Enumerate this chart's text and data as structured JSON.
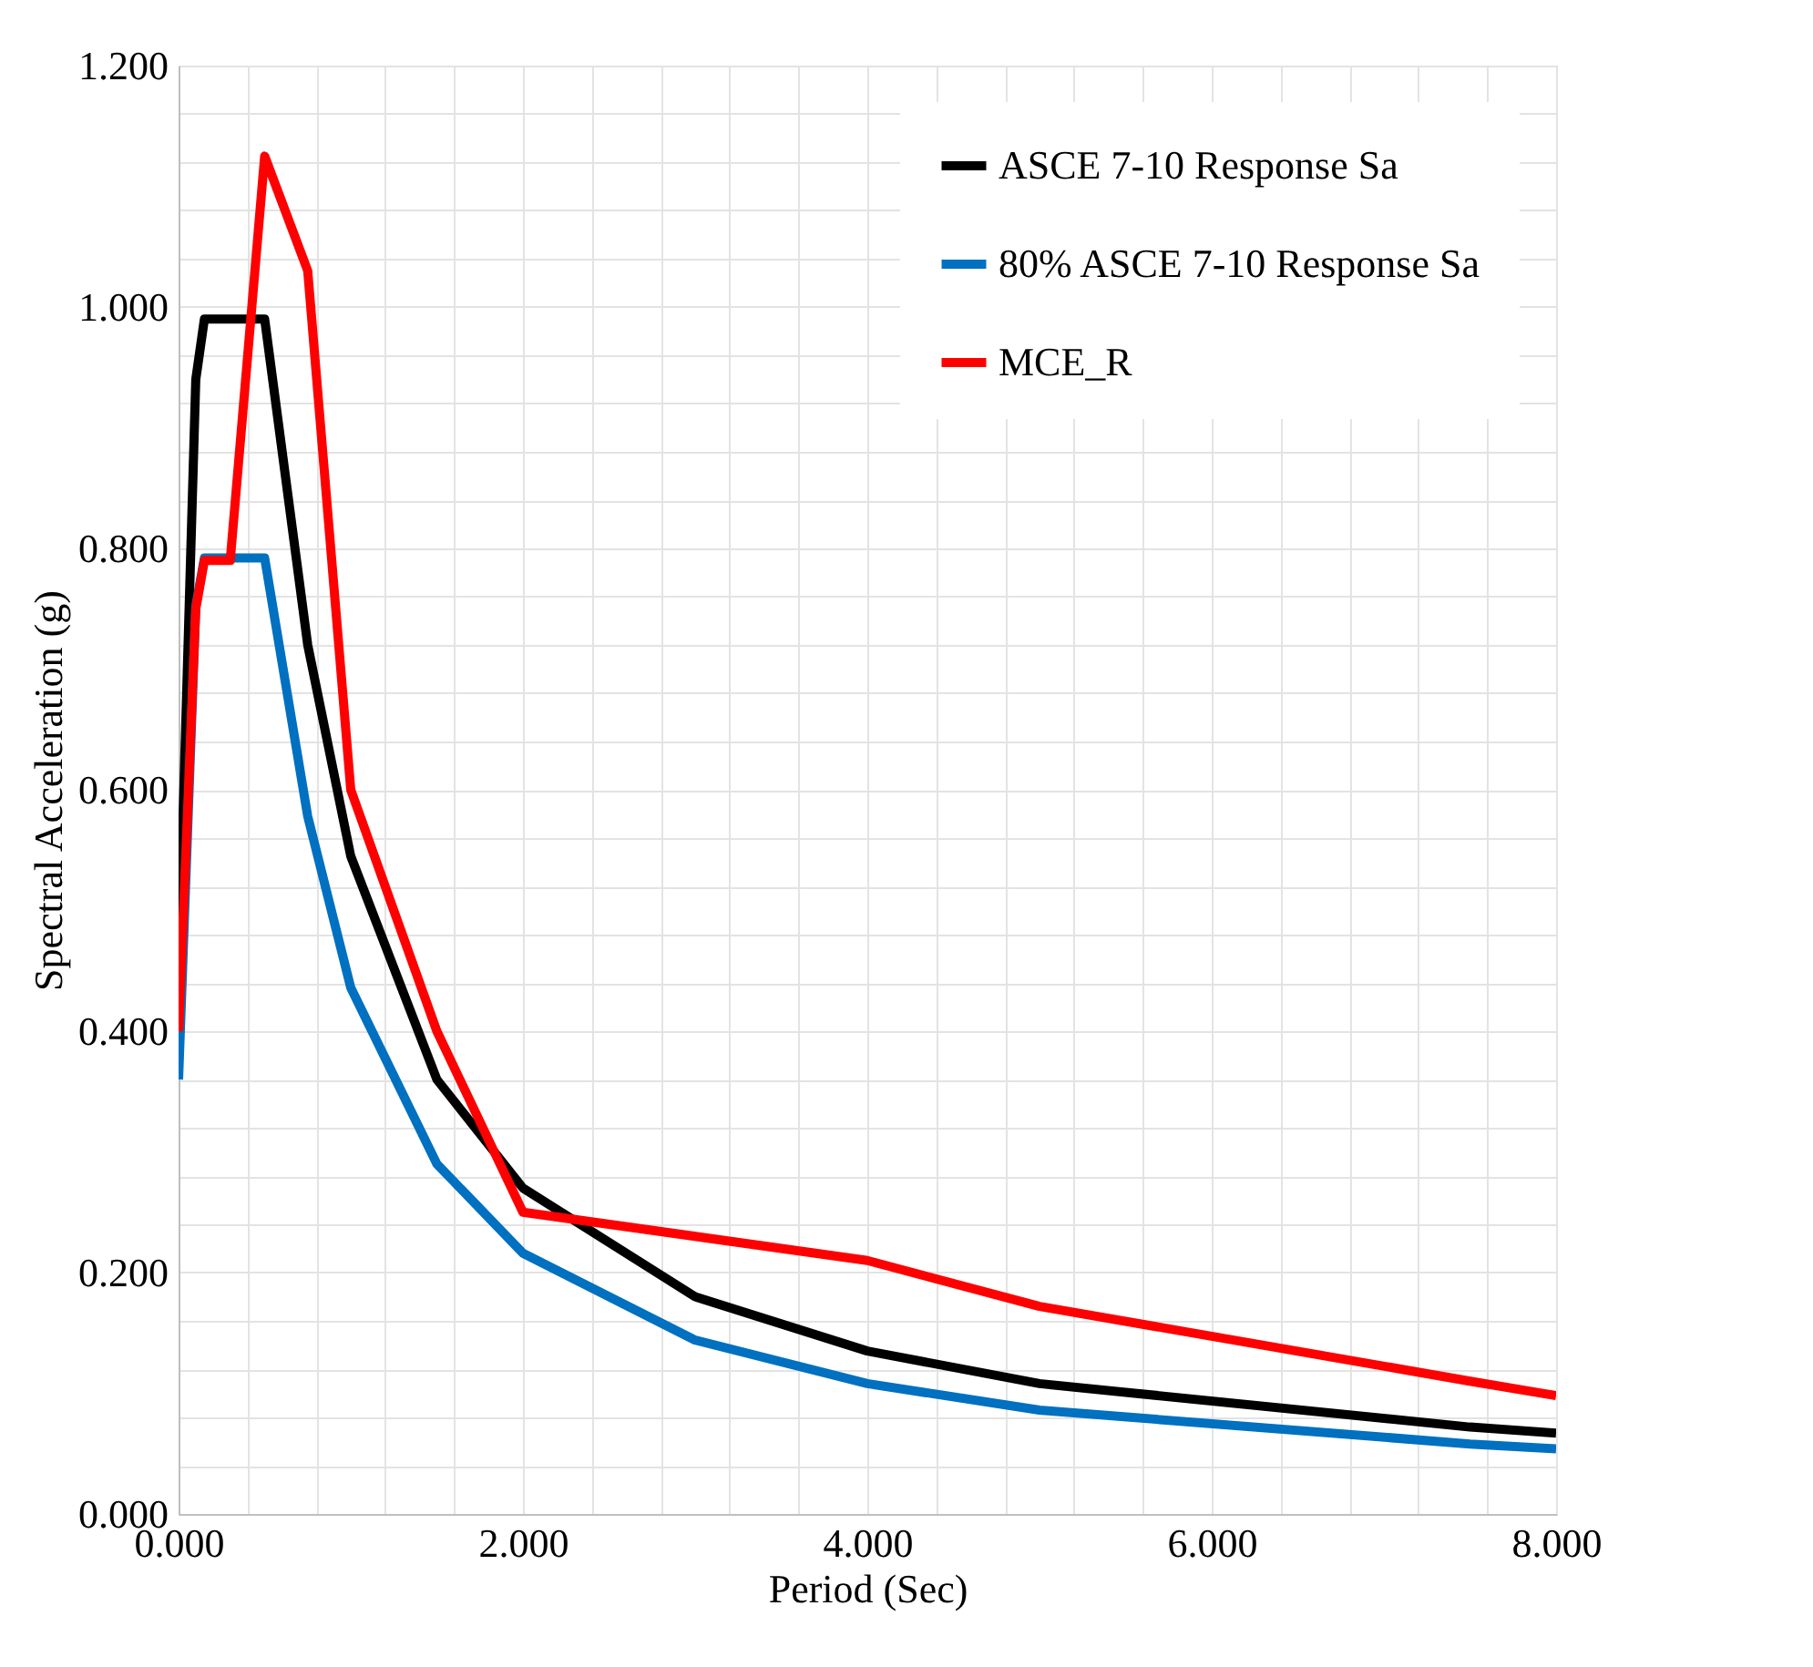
{
  "chart_data": {
    "type": "line",
    "xlabel": "Period (Sec)",
    "ylabel": "Spectral Acceleration (g)",
    "xlim": [
      0,
      8
    ],
    "ylim": [
      0,
      1.2
    ],
    "xticks": [
      {
        "value": 0,
        "label": "0.000"
      },
      {
        "value": 0.4,
        "label": null
      },
      {
        "value": 0.8,
        "label": null
      },
      {
        "value": 1.2,
        "label": null
      },
      {
        "value": 1.6,
        "label": null
      },
      {
        "value": 2,
        "label": "2.000"
      },
      {
        "value": 2.4,
        "label": null
      },
      {
        "value": 2.8,
        "label": null
      },
      {
        "value": 3.2,
        "label": null
      },
      {
        "value": 3.6,
        "label": null
      },
      {
        "value": 4,
        "label": "4.000"
      },
      {
        "value": 4.4,
        "label": null
      },
      {
        "value": 4.8,
        "label": null
      },
      {
        "value": 5.2,
        "label": null
      },
      {
        "value": 5.6,
        "label": null
      },
      {
        "value": 6,
        "label": "6.000"
      },
      {
        "value": 6.4,
        "label": null
      },
      {
        "value": 6.8,
        "label": null
      },
      {
        "value": 7.2,
        "label": null
      },
      {
        "value": 7.6,
        "label": null
      },
      {
        "value": 8,
        "label": "8.000"
      }
    ],
    "yticks": [
      {
        "value": 0,
        "label": "0.000"
      },
      {
        "value": 0.04,
        "label": null
      },
      {
        "value": 0.08,
        "label": null
      },
      {
        "value": 0.12,
        "label": null
      },
      {
        "value": 0.16,
        "label": null
      },
      {
        "value": 0.2,
        "label": "0.200"
      },
      {
        "value": 0.24,
        "label": null
      },
      {
        "value": 0.28,
        "label": null
      },
      {
        "value": 0.32,
        "label": null
      },
      {
        "value": 0.36,
        "label": null
      },
      {
        "value": 0.4,
        "label": "0.400"
      },
      {
        "value": 0.44,
        "label": null
      },
      {
        "value": 0.48,
        "label": null
      },
      {
        "value": 0.52,
        "label": null
      },
      {
        "value": 0.56,
        "label": null
      },
      {
        "value": 0.6,
        "label": "0.600"
      },
      {
        "value": 0.64,
        "label": null
      },
      {
        "value": 0.68,
        "label": null
      },
      {
        "value": 0.72,
        "label": null
      },
      {
        "value": 0.76,
        "label": null
      },
      {
        "value": 0.8,
        "label": "0.800"
      },
      {
        "value": 0.84,
        "label": null
      },
      {
        "value": 0.88,
        "label": null
      },
      {
        "value": 0.92,
        "label": null
      },
      {
        "value": 0.96,
        "label": null
      },
      {
        "value": 1.0,
        "label": "1.000"
      },
      {
        "value": 1.04,
        "label": null
      },
      {
        "value": 1.08,
        "label": null
      },
      {
        "value": 1.12,
        "label": null
      },
      {
        "value": 1.16,
        "label": null
      },
      {
        "value": 1.2,
        "label": "1.200"
      }
    ],
    "grid": true,
    "legend": "top right",
    "marker": "none",
    "line_style": "solid",
    "series": [
      {
        "name": "ASCE 7-10 Response Sa",
        "color": "#000000",
        "x": [
          0,
          0.1,
          0.15,
          0.5,
          0.75,
          1.0,
          1.5,
          2.0,
          3.0,
          4.0,
          5.0,
          7.5,
          8.0
        ],
        "values": [
          0.45,
          0.94,
          0.99,
          0.99,
          0.72,
          0.545,
          0.36,
          0.27,
          0.18,
          0.135,
          0.108,
          0.072,
          0.067
        ]
      },
      {
        "name": "80% ASCE 7-10 Response Sa",
        "color": "#0070c0",
        "x": [
          0,
          0.1,
          0.15,
          0.5,
          0.75,
          1.0,
          1.5,
          2.0,
          3.0,
          4.0,
          5.0,
          7.5,
          8.0
        ],
        "values": [
          0.36,
          0.752,
          0.792,
          0.792,
          0.578,
          0.436,
          0.29,
          0.216,
          0.144,
          0.108,
          0.086,
          0.058,
          0.054
        ]
      },
      {
        "name": "MCE_R",
        "color": "#ff0000",
        "x": [
          0,
          0.1,
          0.15,
          0.3,
          0.5,
          0.75,
          1.0,
          1.5,
          2.0,
          4.0,
          5.0,
          7.5,
          8.0
        ],
        "values": [
          0.4,
          0.75,
          0.79,
          0.79,
          1.125,
          1.03,
          0.6,
          0.4,
          0.25,
          0.21,
          0.172,
          0.11,
          0.098
        ]
      }
    ]
  }
}
